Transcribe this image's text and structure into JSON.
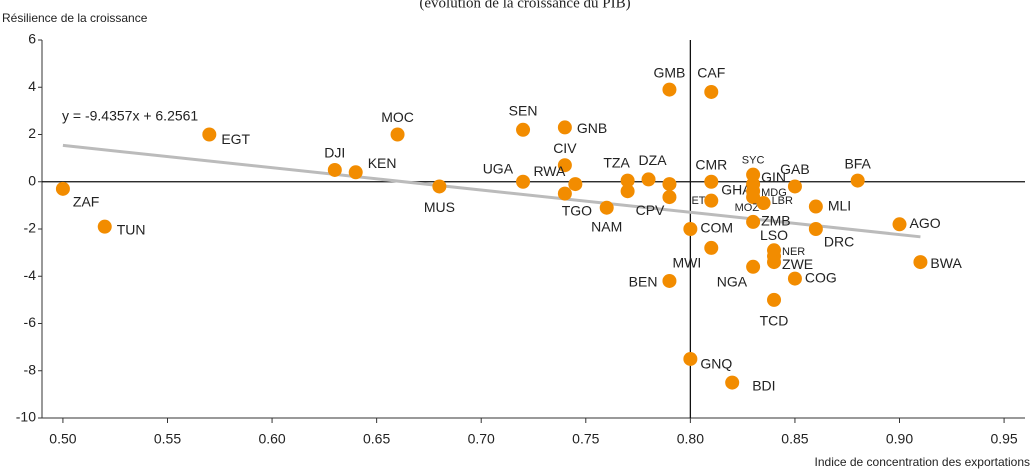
{
  "chart_data": {
    "type": "scatter",
    "subtitle": "(évolution de la croissance du PIB)",
    "y_label": "Résilience de la croissance",
    "x_label": "Indice de concentration des exportations",
    "color": "#f28c00",
    "labels": [
      "ZAF",
      "TUN",
      "EGT",
      "MOC",
      "DJI",
      "KEN",
      "MUS",
      "SEN",
      "GNB",
      "UGA",
      "CIV",
      "RWA",
      "TGO",
      "TZA",
      "CPV",
      "NAM",
      "DZA",
      "GMB",
      "CAF",
      null,
      "ETH",
      "CMR",
      "GHA",
      "SYC",
      "GIN",
      "MDG",
      "MOZ",
      "LBR",
      "ZMB",
      "GAB",
      "BFA",
      "MLI",
      "DRC",
      "AGO",
      "BWA",
      "COM",
      "MWI",
      "LSO",
      "NER",
      "ZWE",
      "NGA",
      "COG",
      "BEN",
      "TCD",
      "GNQ",
      "BDI"
    ],
    "x": [
      0.5,
      0.52,
      0.57,
      0.66,
      0.63,
      0.64,
      0.68,
      0.72,
      0.74,
      0.72,
      0.74,
      0.745,
      0.74,
      0.77,
      0.77,
      0.76,
      0.78,
      0.79,
      0.81,
      0.79,
      0.79,
      0.81,
      0.81,
      0.83,
      0.83,
      0.83,
      0.83,
      0.835,
      0.83,
      0.85,
      0.88,
      0.86,
      0.86,
      0.9,
      0.91,
      0.8,
      0.81,
      0.84,
      0.84,
      0.84,
      0.83,
      0.85,
      0.79,
      0.84,
      0.8,
      0.82
    ],
    "values": [
      -0.3,
      -1.9,
      2.0,
      2.0,
      0.5,
      0.4,
      -0.2,
      2.2,
      2.3,
      0,
      0.7,
      -0.1,
      -0.5,
      0.05,
      -0.4,
      -1.1,
      0.1,
      3.9,
      3.8,
      -0.1,
      -0.65,
      0,
      -0.8,
      0.3,
      -0.1,
      -0.4,
      -0.65,
      -0.9,
      -1.7,
      -0.2,
      0.05,
      -1.05,
      -2.0,
      -1.8,
      -3.4,
      -2.0,
      -2.8,
      -2.9,
      -3.15,
      -3.4,
      -3.6,
      -4.1,
      -4.2,
      -5.0,
      -7.5,
      -8.5
    ],
    "trendline": {
      "slope": -9.4357,
      "intercept": 6.2561,
      "label": "y = -9.4357x + 6.2561",
      "color": "#bbbbbb"
    },
    "vline": 0.8,
    "hline": 0,
    "xlim": [
      0.49,
      0.96
    ],
    "xticks": [
      {
        "value": 0.5,
        "label": "0.50"
      },
      {
        "value": 0.55,
        "label": "0.55"
      },
      {
        "value": 0.6,
        "label": "0.60"
      },
      {
        "value": 0.65,
        "label": "0.65"
      },
      {
        "value": 0.7,
        "label": "0.70"
      },
      {
        "value": 0.75,
        "label": "0.75"
      },
      {
        "value": 0.8,
        "label": "0.80"
      },
      {
        "value": 0.85,
        "label": "0.85"
      },
      {
        "value": 0.9,
        "label": "0.90"
      },
      {
        "value": 0.95,
        "label": "0.95"
      }
    ],
    "ylim": [
      -10,
      6
    ],
    "yticks": [
      -10,
      -8,
      -6,
      -4,
      -2,
      0,
      2,
      4,
      6
    ]
  }
}
